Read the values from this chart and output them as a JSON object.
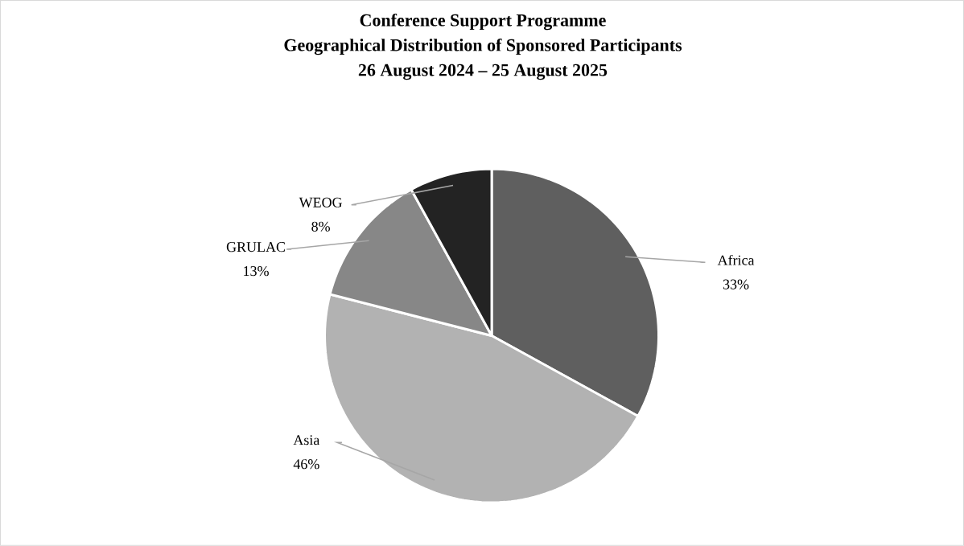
{
  "chart_data": {
    "type": "pie",
    "title": "Conference Support Programme\nGeographical Distribution of Sponsored Participants\n26 August 2024 – 25 August 2025",
    "categories": [
      "Africa",
      "Asia",
      "GRULAC",
      "WEOG"
    ],
    "values": [
      33,
      46,
      13,
      8
    ],
    "colors": [
      "#5f5f5f",
      "#b2b2b2",
      "#878787",
      "#232323"
    ],
    "value_labels": [
      "33%",
      "46%",
      "13%",
      "8%"
    ]
  }
}
